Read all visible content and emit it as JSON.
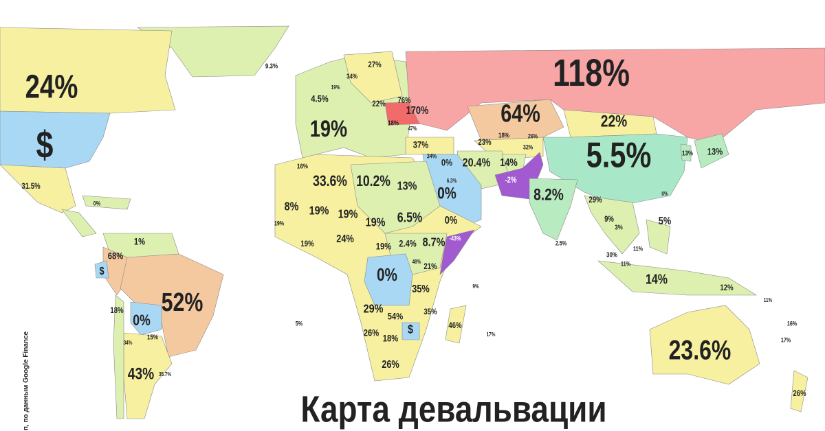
{
  "title": "Карта девальвации",
  "source": "п, по данным Google Finance",
  "labels": [
    "24%",
    "$",
    "31.5%",
    "9.3%",
    "4.5%",
    "19%",
    "27%",
    "34%",
    "19%",
    "76%",
    "22%",
    "170%",
    "18%",
    "47%",
    "37%",
    "34%",
    "118%",
    "64%",
    "22%",
    "5.5%",
    "13%",
    "13%",
    "23%",
    "18%",
    "26%",
    "32%",
    "20.4%",
    "14%",
    "-2%",
    "0%",
    "6.3%",
    "0%",
    "0%",
    "8.2%",
    "29%",
    "3%",
    "9%",
    "5%",
    "0%",
    "2.5%",
    "30%",
    "11%",
    "11%",
    "14%",
    "12%",
    "23.6%",
    "16%",
    "17%",
    "26%",
    "11%",
    "16%",
    "33.6%",
    "10.2%",
    "13%",
    "8%",
    "19%",
    "19%",
    "19%",
    "6.5%",
    "24%",
    "19%",
    "2.4%",
    "8.7%",
    "-43%",
    "19%",
    "19%",
    "0%",
    "48%",
    "21%",
    "35%",
    "29%",
    "54%",
    "35%",
    "26%",
    "18%",
    "$",
    "46%",
    "26%",
    "17%",
    "9%",
    "5%",
    "68%",
    "1%",
    "$",
    "52%",
    "0%",
    "18%",
    "15%",
    "34%",
    "43%",
    "35.7%",
    "0%"
  ]
}
